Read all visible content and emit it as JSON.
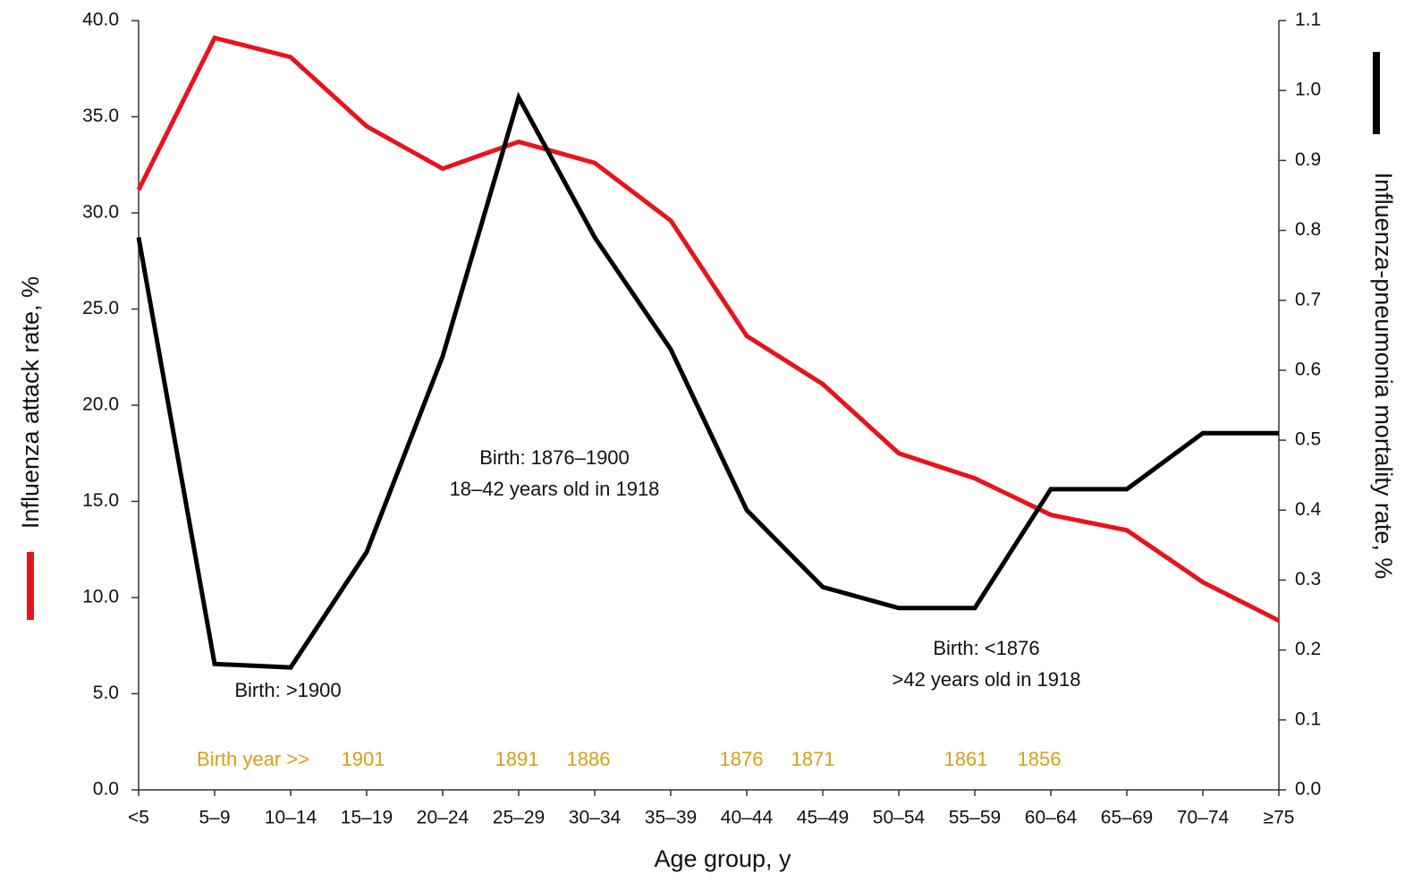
{
  "chart_data": {
    "type": "line",
    "xlabel": "Age group, y",
    "ylabel": "Influenza attack rate, %",
    "y2label": "Influenza-pneumonia mortality rate, %",
    "categories": [
      "<5",
      "5–9",
      "10–14",
      "15–19",
      "20–24",
      "25–29",
      "30–34",
      "35–39",
      "40–44",
      "45–49",
      "50–54",
      "55–59",
      "60–64",
      "65–69",
      "70–74",
      "≥75"
    ],
    "series": [
      {
        "color": "#e8141b",
        "values": [
          31.2,
          39.1,
          38.1,
          34.5,
          32.3,
          33.7,
          32.6,
          29.6,
          23.6,
          21.1,
          17.5,
          16.2,
          14.3,
          13.5,
          10.8,
          8.8
        ]
      },
      {
        "color": "#000000",
        "axis": "y2",
        "values": [
          0.79,
          0.18,
          0.175,
          0.34,
          0.62,
          0.99,
          0.79,
          0.63,
          0.4,
          0.29,
          0.26,
          0.26,
          0.43,
          0.43,
          0.51,
          0.51
        ]
      }
    ],
    "ylim": [
      0,
      40
    ],
    "yticks": [
      {
        "value": 0,
        "label": "0.0"
      },
      {
        "value": 5,
        "label": "5.0"
      },
      {
        "value": 10,
        "label": "10.0"
      },
      {
        "value": 15,
        "label": "15.0"
      },
      {
        "value": 20,
        "label": "20.0"
      },
      {
        "value": 25,
        "label": "25.0"
      },
      {
        "value": 30,
        "label": "30.0"
      },
      {
        "value": 35,
        "label": "35.0"
      },
      {
        "value": 40,
        "label": "40.0"
      }
    ],
    "y2lim": [
      0,
      1.1
    ],
    "y2ticks": [
      {
        "value": 0,
        "label": "0.0"
      },
      0.1,
      0.2,
      0.3,
      0.4,
      0.5,
      0.6,
      0.7,
      0.8,
      0.9,
      {
        "value": 1,
        "label": "1.0"
      },
      1.1
    ],
    "annotations": [
      [
        "Birth: >1900"
      ],
      [
        "Birth: 1876–1900",
        "18–42 years old in 1918"
      ],
      [
        "Birth: <1876",
        ">42 years old in 1918"
      ]
    ],
    "birth_year_label": "Birth year >>",
    "birth_years": [
      "1901",
      "1891",
      "1886",
      "1876",
      "1871",
      "1861",
      "1856"
    ]
  }
}
